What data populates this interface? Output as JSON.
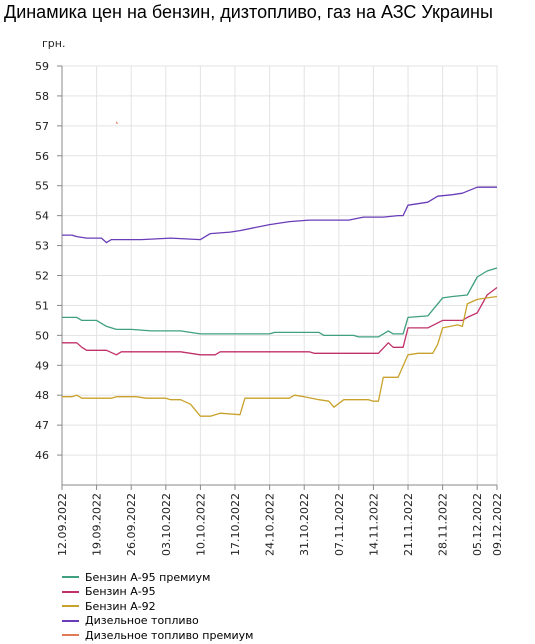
{
  "title": "Динамика цен на бензин, дизтопливо, газ на АЗС Украины",
  "chart_data": {
    "type": "line",
    "title": "Динамика цен на бензин, дизтопливо, газ на АЗС Украины",
    "ylabel": "грн.",
    "xlabel": "",
    "ylim": [
      45,
      59
    ],
    "yticks": [
      46,
      47,
      48,
      49,
      50,
      51,
      52,
      53,
      54,
      55,
      56,
      57,
      58,
      59
    ],
    "xlim": [
      "12.09.2022",
      "09.12.2022"
    ],
    "x_tick_labels": [
      "12.09.2022",
      "19.09.2022",
      "26.09.2022",
      "03.10.2022",
      "10.10.2022",
      "17.10.2022",
      "24.10.2022",
      "31.10.2022",
      "07.11.2022",
      "14.11.2022",
      "21.11.2022",
      "28.11.2022",
      "05.12.2022",
      "09.12.2022"
    ],
    "grid": true,
    "legend_position": "bottom-left",
    "series": [
      {
        "name": "Бензин А-95 премиум",
        "color": "#3f9f80",
        "points": [
          [
            "12.09.2022",
            50.6
          ],
          [
            "15.09.2022",
            50.6
          ],
          [
            "16.09.2022",
            50.5
          ],
          [
            "19.09.2022",
            50.5
          ],
          [
            "21.09.2022",
            50.3
          ],
          [
            "23.09.2022",
            50.2
          ],
          [
            "26.09.2022",
            50.2
          ],
          [
            "30.09.2022",
            50.15
          ],
          [
            "03.10.2022",
            50.15
          ],
          [
            "06.10.2022",
            50.15
          ],
          [
            "08.10.2022",
            50.1
          ],
          [
            "10.10.2022",
            50.05
          ],
          [
            "20.10.2022",
            50.05
          ],
          [
            "24.10.2022",
            50.05
          ],
          [
            "25.10.2022",
            50.1
          ],
          [
            "03.11.2022",
            50.1
          ],
          [
            "04.11.2022",
            50.0
          ],
          [
            "10.11.2022",
            50.0
          ],
          [
            "11.11.2022",
            49.95
          ],
          [
            "15.11.2022",
            49.95
          ],
          [
            "17.11.2022",
            50.15
          ],
          [
            "18.11.2022",
            50.05
          ],
          [
            "20.11.2022",
            50.05
          ],
          [
            "21.11.2022",
            50.6
          ],
          [
            "25.11.2022",
            50.65
          ],
          [
            "28.11.2022",
            51.25
          ],
          [
            "30.11.2022",
            51.3
          ],
          [
            "03.12.2022",
            51.35
          ],
          [
            "05.12.2022",
            51.95
          ],
          [
            "07.12.2022",
            52.15
          ],
          [
            "09.12.2022",
            52.25
          ]
        ]
      },
      {
        "name": "Бензин А-95",
        "color": "#c0306a",
        "points": [
          [
            "12.09.2022",
            49.75
          ],
          [
            "15.09.2022",
            49.75
          ],
          [
            "16.09.2022",
            49.6
          ],
          [
            "17.09.2022",
            49.5
          ],
          [
            "21.09.2022",
            49.5
          ],
          [
            "23.09.2022",
            49.35
          ],
          [
            "24.09.2022",
            49.45
          ],
          [
            "29.09.2022",
            49.45
          ],
          [
            "06.10.2022",
            49.45
          ],
          [
            "08.10.2022",
            49.4
          ],
          [
            "10.10.2022",
            49.35
          ],
          [
            "13.10.2022",
            49.35
          ],
          [
            "14.10.2022",
            49.45
          ],
          [
            "01.11.2022",
            49.45
          ],
          [
            "02.11.2022",
            49.4
          ],
          [
            "14.11.2022",
            49.4
          ],
          [
            "15.11.2022",
            49.4
          ],
          [
            "17.11.2022",
            49.75
          ],
          [
            "18.11.2022",
            49.6
          ],
          [
            "20.11.2022",
            49.6
          ],
          [
            "21.11.2022",
            50.25
          ],
          [
            "25.11.2022",
            50.25
          ],
          [
            "28.11.2022",
            50.5
          ],
          [
            "02.12.2022",
            50.5
          ],
          [
            "03.12.2022",
            50.6
          ],
          [
            "05.12.2022",
            50.75
          ],
          [
            "07.12.2022",
            51.35
          ],
          [
            "09.12.2022",
            51.6
          ]
        ]
      },
      {
        "name": "Бензин А-92",
        "color": "#c9a22c",
        "points": [
          [
            "12.09.2022",
            47.95
          ],
          [
            "14.09.2022",
            47.95
          ],
          [
            "15.09.2022",
            48.0
          ],
          [
            "16.09.2022",
            47.9
          ],
          [
            "22.09.2022",
            47.9
          ],
          [
            "23.09.2022",
            47.95
          ],
          [
            "27.09.2022",
            47.95
          ],
          [
            "29.09.2022",
            47.9
          ],
          [
            "01.10.2022",
            47.9
          ],
          [
            "03.10.2022",
            47.9
          ],
          [
            "04.10.2022",
            47.85
          ],
          [
            "06.10.2022",
            47.85
          ],
          [
            "08.10.2022",
            47.7
          ],
          [
            "10.10.2022",
            47.3
          ],
          [
            "12.10.2022",
            47.3
          ],
          [
            "14.10.2022",
            47.4
          ],
          [
            "18.10.2022",
            47.35
          ],
          [
            "19.10.2022",
            47.9
          ],
          [
            "28.10.2022",
            47.9
          ],
          [
            "29.10.2022",
            48.0
          ],
          [
            "31.10.2022",
            47.95
          ],
          [
            "03.11.2022",
            47.85
          ],
          [
            "05.11.2022",
            47.8
          ],
          [
            "06.11.2022",
            47.6
          ],
          [
            "08.11.2022",
            47.85
          ],
          [
            "13.11.2022",
            47.85
          ],
          [
            "14.11.2022",
            47.8
          ],
          [
            "15.11.2022",
            47.8
          ],
          [
            "16.11.2022",
            48.6
          ],
          [
            "19.11.2022",
            48.6
          ],
          [
            "21.11.2022",
            49.35
          ],
          [
            "23.11.2022",
            49.4
          ],
          [
            "26.11.2022",
            49.4
          ],
          [
            "27.11.2022",
            49.7
          ],
          [
            "28.11.2022",
            50.25
          ],
          [
            "01.12.2022",
            50.35
          ],
          [
            "02.12.2022",
            50.3
          ],
          [
            "03.12.2022",
            51.05
          ],
          [
            "05.12.2022",
            51.2
          ],
          [
            "07.12.2022",
            51.25
          ],
          [
            "09.12.2022",
            51.3
          ]
        ]
      },
      {
        "name": "Дизельное топливо",
        "color": "#6a3cb8",
        "points": [
          [
            "12.09.2022",
            53.35
          ],
          [
            "14.09.2022",
            53.35
          ],
          [
            "15.09.2022",
            53.3
          ],
          [
            "17.09.2022",
            53.25
          ],
          [
            "20.09.2022",
            53.25
          ],
          [
            "21.09.2022",
            53.1
          ],
          [
            "22.09.2022",
            53.2
          ],
          [
            "28.09.2022",
            53.2
          ],
          [
            "04.10.2022",
            53.25
          ],
          [
            "10.10.2022",
            53.2
          ],
          [
            "12.10.2022",
            53.4
          ],
          [
            "16.10.2022",
            53.45
          ],
          [
            "18.10.2022",
            53.5
          ],
          [
            "24.10.2022",
            53.7
          ],
          [
            "28.10.2022",
            53.8
          ],
          [
            "01.11.2022",
            53.85
          ],
          [
            "04.11.2022",
            53.85
          ],
          [
            "09.11.2022",
            53.85
          ],
          [
            "12.11.2022",
            53.95
          ],
          [
            "16.11.2022",
            53.95
          ],
          [
            "19.11.2022",
            54.0
          ],
          [
            "20.11.2022",
            54.0
          ],
          [
            "21.11.2022",
            54.35
          ],
          [
            "25.11.2022",
            54.45
          ],
          [
            "27.11.2022",
            54.65
          ],
          [
            "30.11.2022",
            54.7
          ],
          [
            "02.12.2022",
            54.75
          ],
          [
            "05.12.2022",
            54.95
          ],
          [
            "09.12.2022",
            54.95
          ]
        ]
      },
      {
        "name": "Дизельное топливо премиум",
        "color": "#e07b56",
        "points": [
          [
            "23.09.2022",
            57.1
          ]
        ]
      }
    ]
  }
}
